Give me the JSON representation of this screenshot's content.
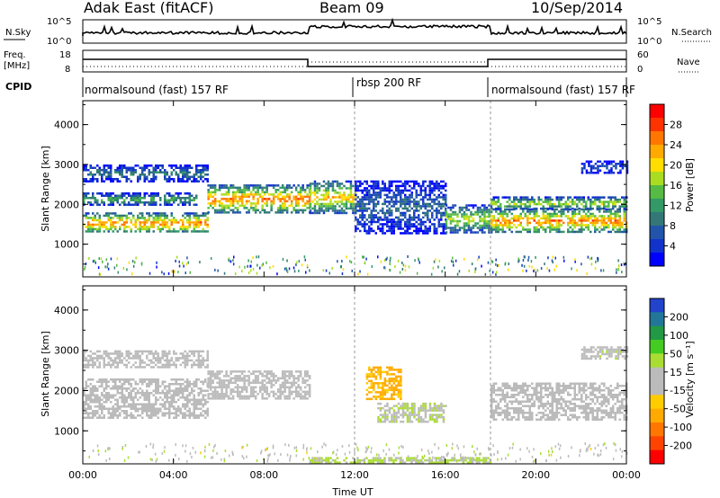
{
  "header": {
    "station": "Adak East (fitACF)",
    "beam": "Beam 09",
    "date": "10/Sep/2014"
  },
  "noise_panel": {
    "left_label": "N.Sky",
    "right_label": "N.Search",
    "tick_top": "10^5",
    "tick_bottom": "10^0"
  },
  "freq_panel": {
    "left_label_line1": "Freq.",
    "left_label_line2": "[MHz]",
    "right_label": "Nave",
    "left_ticks": [
      "18",
      "8"
    ],
    "right_ticks": [
      "60",
      "0"
    ]
  },
  "cpid_panel": {
    "label": "CPID",
    "segments": [
      {
        "name": "normalsound (fast) 157 RF",
        "start_hour": 0,
        "end_hour": 12
      },
      {
        "name": "rbsp 200 RF",
        "start_hour": 12,
        "end_hour": 18
      },
      {
        "name": "normalsound (fast) 157 RF",
        "start_hour": 18,
        "end_hour": 24
      }
    ]
  },
  "x_axis": {
    "label": "Time UT",
    "ticks": [
      "00:00",
      "04:00",
      "08:00",
      "12:00",
      "16:00",
      "20:00",
      "00:00"
    ]
  },
  "power_colorbar": {
    "label": "Power [dB]",
    "ticks": [
      "28",
      "24",
      "20",
      "16",
      "12",
      "8",
      "4"
    ],
    "colors": [
      "#ff0000",
      "#ff3300",
      "#ff7700",
      "#ffaa00",
      "#ffdd00",
      "#aadd22",
      "#55bb44",
      "#339966",
      "#337777",
      "#2255aa",
      "#1133cc",
      "#0000ff"
    ]
  },
  "velocity_colorbar": {
    "label": "Velocity [m s⁻¹]",
    "ticks": [
      "200",
      "100",
      "50",
      "15",
      "-15",
      "-50",
      "-100",
      "-200"
    ],
    "colors": [
      "#2244cc",
      "#227799",
      "#229944",
      "#44cc22",
      "#aadd33",
      "#bbbbbb",
      "#bbbbbb",
      "#ffcc00",
      "#ffaa00",
      "#ff7700",
      "#ff4400",
      "#ff0000"
    ]
  },
  "chart_data": [
    {
      "type": "heatmap",
      "title": "",
      "xlabel": "Time UT",
      "ylabel": "Slant Range [km]",
      "xlim": [
        0,
        24
      ],
      "ylim": [
        180,
        4600
      ],
      "yticks": [
        1000,
        2000,
        3000,
        4000
      ],
      "colorbar_label": "Power [dB]",
      "colorbar_range": [
        0,
        30
      ],
      "echo_bands": [
        {
          "start_hour": 0,
          "end_hour": 5.5,
          "range_km": [
            1300,
            1800
          ],
          "power_db": 28
        },
        {
          "start_hour": 5.5,
          "end_hour": 10,
          "range_km": [
            1800,
            2500
          ],
          "power_db": 28
        },
        {
          "start_hour": 0,
          "end_hour": 5,
          "range_km": [
            2000,
            2300
          ],
          "power_db": 16
        },
        {
          "start_hour": 0,
          "end_hour": 5.5,
          "range_km": [
            2600,
            3000
          ],
          "power_db": 12
        },
        {
          "start_hour": 10,
          "end_hour": 12,
          "range_km": [
            1800,
            2600
          ],
          "power_db": 24
        },
        {
          "start_hour": 12,
          "end_hour": 16,
          "range_km": [
            1300,
            2600
          ],
          "power_db": 10
        },
        {
          "start_hour": 16,
          "end_hour": 18,
          "range_km": [
            1300,
            2000
          ],
          "power_db": 20
        },
        {
          "start_hour": 18,
          "end_hour": 24,
          "range_km": [
            1300,
            1900
          ],
          "power_db": 28
        },
        {
          "start_hour": 18,
          "end_hour": 24,
          "range_km": [
            1900,
            2200
          ],
          "power_db": 20
        },
        {
          "start_hour": 22,
          "end_hour": 24,
          "range_km": [
            2800,
            3100
          ],
          "power_db": 8
        }
      ]
    },
    {
      "type": "heatmap",
      "title": "",
      "xlabel": "Time UT",
      "ylabel": "Slant Range [km]",
      "xlim": [
        0,
        24
      ],
      "ylim": [
        180,
        4600
      ],
      "yticks": [
        1000,
        2000,
        3000,
        4000
      ],
      "colorbar_label": "Velocity [m s⁻¹]",
      "colorbar_range": [
        -200,
        200
      ],
      "echo_bands": [
        {
          "start_hour": 0,
          "end_hour": 5.5,
          "range_km": [
            1300,
            2300
          ],
          "velocity": 0
        },
        {
          "start_hour": 5.5,
          "end_hour": 10,
          "range_km": [
            1800,
            2500
          ],
          "velocity": 0
        },
        {
          "start_hour": 0,
          "end_hour": 5.5,
          "range_km": [
            2600,
            3000
          ],
          "velocity": 0
        },
        {
          "start_hour": 12.5,
          "end_hour": 14,
          "range_km": [
            1800,
            2600
          ],
          "velocity": -80
        },
        {
          "start_hour": 13,
          "end_hour": 16,
          "range_km": [
            1200,
            1700
          ],
          "velocity": 30
        },
        {
          "start_hour": 18,
          "end_hour": 24,
          "range_km": [
            1300,
            2200
          ],
          "velocity": 0
        },
        {
          "start_hour": 22,
          "end_hour": 24,
          "range_km": [
            2800,
            3100
          ],
          "velocity": 20
        },
        {
          "start_hour": 10,
          "end_hour": 18,
          "range_km": [
            200,
            350
          ],
          "velocity": 40
        }
      ]
    }
  ]
}
